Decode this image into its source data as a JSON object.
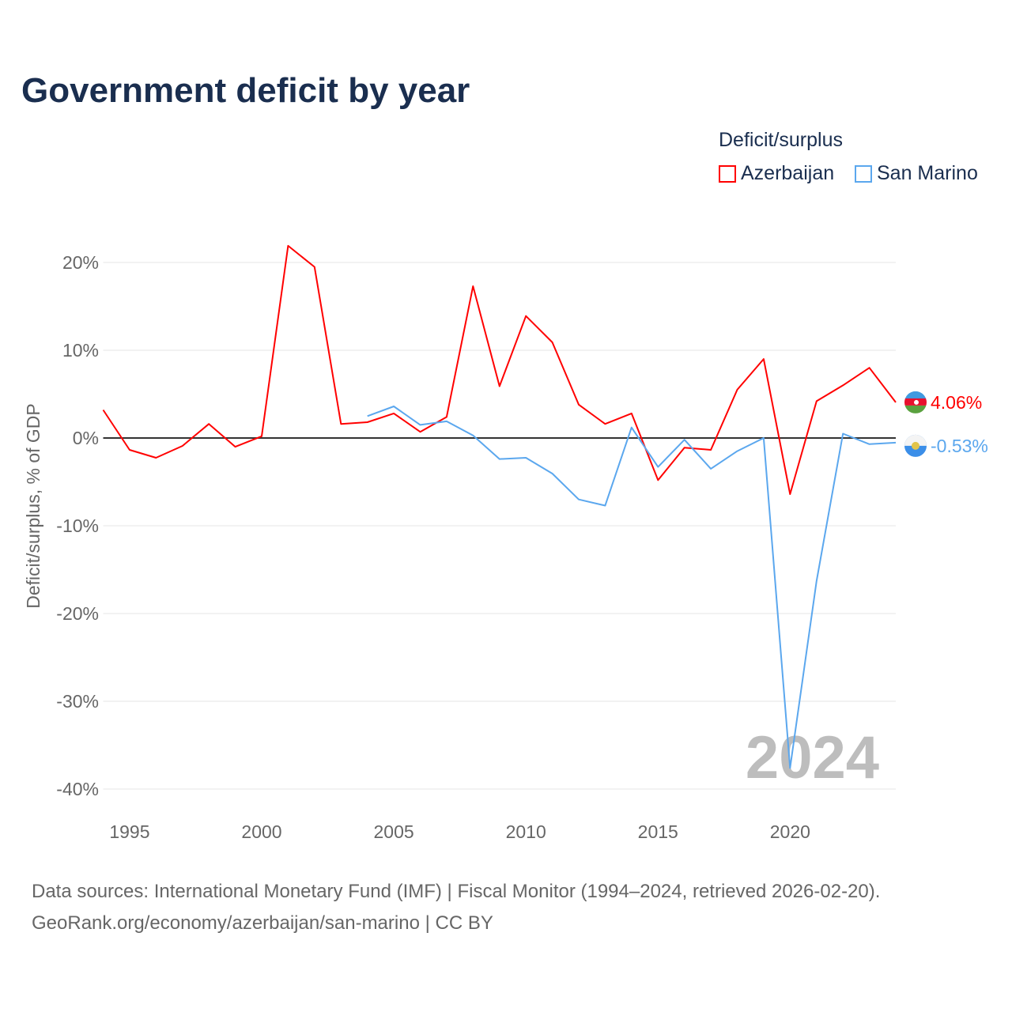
{
  "chart_data": {
    "type": "line",
    "title": "Government deficit by year",
    "ylabel": "Deficit/surplus, % of GDP",
    "xlabel": "",
    "legend_title": "Deficit/surplus",
    "legend_position": "top-right",
    "ylim": [
      -40,
      20
    ],
    "xlim": [
      1994,
      2024
    ],
    "y_ticks": [
      20,
      10,
      0,
      -10,
      -20,
      -30,
      -40
    ],
    "y_tick_labels": [
      "20%",
      "10%",
      "0%",
      "-10%",
      "-20%",
      "-30%",
      "-40%"
    ],
    "x_ticks": [
      1995,
      2000,
      2005,
      2010,
      2015,
      2020
    ],
    "x_tick_labels": [
      "1995",
      "2000",
      "2005",
      "2010",
      "2015",
      "2020"
    ],
    "grid": true,
    "year_watermark": "2024",
    "series": [
      {
        "name": "Azerbaijan",
        "color": "#ff0000",
        "end_label": "4.06%",
        "x": [
          1994,
          1995,
          1996,
          1997,
          1998,
          1999,
          2000,
          2001,
          2002,
          2003,
          2004,
          2005,
          2006,
          2007,
          2008,
          2009,
          2010,
          2011,
          2012,
          2013,
          2014,
          2015,
          2016,
          2017,
          2018,
          2019,
          2020,
          2021,
          2022,
          2023,
          2024
        ],
        "values": [
          3.2,
          -1.35,
          -2.25,
          -0.9,
          1.6,
          -1.0,
          0.2,
          21.9,
          19.5,
          1.6,
          1.8,
          2.8,
          0.7,
          2.4,
          17.3,
          5.9,
          13.9,
          10.9,
          3.8,
          1.6,
          2.8,
          -4.8,
          -1.1,
          -1.35,
          5.5,
          9.0,
          -6.4,
          4.2,
          6.0,
          8.0,
          4.06
        ]
      },
      {
        "name": "San Marino",
        "color": "#5ba7ee",
        "end_label": "-0.53%",
        "x": [
          2004,
          2005,
          2006,
          2007,
          2008,
          2009,
          2010,
          2011,
          2012,
          2013,
          2014,
          2015,
          2016,
          2017,
          2018,
          2019,
          2020,
          2021,
          2022,
          2023,
          2024
        ],
        "values": [
          2.5,
          3.6,
          1.5,
          1.9,
          0.3,
          -2.4,
          -2.25,
          -4.05,
          -7.0,
          -7.7,
          1.2,
          -3.3,
          -0.2,
          -3.5,
          -1.5,
          0.0,
          -37.6,
          -16.3,
          0.5,
          -0.7,
          -0.53
        ]
      }
    ]
  },
  "footer": {
    "line1": "Data sources: International Monetary Fund (IMF) | Fiscal Monitor (1994–2024, retrieved 2026-02-20).",
    "line2": "GeoRank.org/economy/azerbaijan/san-marino | CC BY"
  }
}
